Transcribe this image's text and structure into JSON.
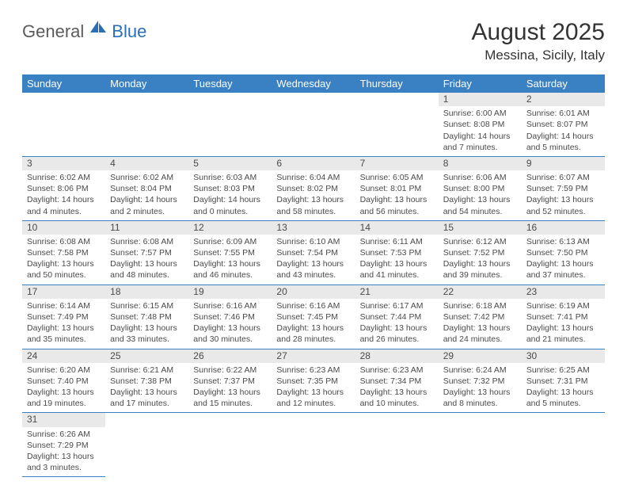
{
  "logo": {
    "word1": "General",
    "word2": "Blue"
  },
  "title": "August 2025",
  "location": "Messina, Sicily, Italy",
  "colors": {
    "header_bg": "#3a81c4",
    "header_text": "#ffffff",
    "daynum_bg": "#e9e9e9",
    "text": "#4a4a4a",
    "rule": "#3a81c4",
    "logo_gray": "#5b5b5b",
    "logo_blue": "#2a6fb5"
  },
  "weekdays": [
    "Sunday",
    "Monday",
    "Tuesday",
    "Wednesday",
    "Thursday",
    "Friday",
    "Saturday"
  ],
  "weeks": [
    [
      null,
      null,
      null,
      null,
      null,
      {
        "n": "1",
        "sunrise": "Sunrise: 6:00 AM",
        "sunset": "Sunset: 8:08 PM",
        "daylight": "Daylight: 14 hours and 7 minutes."
      },
      {
        "n": "2",
        "sunrise": "Sunrise: 6:01 AM",
        "sunset": "Sunset: 8:07 PM",
        "daylight": "Daylight: 14 hours and 5 minutes."
      }
    ],
    [
      {
        "n": "3",
        "sunrise": "Sunrise: 6:02 AM",
        "sunset": "Sunset: 8:06 PM",
        "daylight": "Daylight: 14 hours and 4 minutes."
      },
      {
        "n": "4",
        "sunrise": "Sunrise: 6:02 AM",
        "sunset": "Sunset: 8:04 PM",
        "daylight": "Daylight: 14 hours and 2 minutes."
      },
      {
        "n": "5",
        "sunrise": "Sunrise: 6:03 AM",
        "sunset": "Sunset: 8:03 PM",
        "daylight": "Daylight: 14 hours and 0 minutes."
      },
      {
        "n": "6",
        "sunrise": "Sunrise: 6:04 AM",
        "sunset": "Sunset: 8:02 PM",
        "daylight": "Daylight: 13 hours and 58 minutes."
      },
      {
        "n": "7",
        "sunrise": "Sunrise: 6:05 AM",
        "sunset": "Sunset: 8:01 PM",
        "daylight": "Daylight: 13 hours and 56 minutes."
      },
      {
        "n": "8",
        "sunrise": "Sunrise: 6:06 AM",
        "sunset": "Sunset: 8:00 PM",
        "daylight": "Daylight: 13 hours and 54 minutes."
      },
      {
        "n": "9",
        "sunrise": "Sunrise: 6:07 AM",
        "sunset": "Sunset: 7:59 PM",
        "daylight": "Daylight: 13 hours and 52 minutes."
      }
    ],
    [
      {
        "n": "10",
        "sunrise": "Sunrise: 6:08 AM",
        "sunset": "Sunset: 7:58 PM",
        "daylight": "Daylight: 13 hours and 50 minutes."
      },
      {
        "n": "11",
        "sunrise": "Sunrise: 6:08 AM",
        "sunset": "Sunset: 7:57 PM",
        "daylight": "Daylight: 13 hours and 48 minutes."
      },
      {
        "n": "12",
        "sunrise": "Sunrise: 6:09 AM",
        "sunset": "Sunset: 7:55 PM",
        "daylight": "Daylight: 13 hours and 46 minutes."
      },
      {
        "n": "13",
        "sunrise": "Sunrise: 6:10 AM",
        "sunset": "Sunset: 7:54 PM",
        "daylight": "Daylight: 13 hours and 43 minutes."
      },
      {
        "n": "14",
        "sunrise": "Sunrise: 6:11 AM",
        "sunset": "Sunset: 7:53 PM",
        "daylight": "Daylight: 13 hours and 41 minutes."
      },
      {
        "n": "15",
        "sunrise": "Sunrise: 6:12 AM",
        "sunset": "Sunset: 7:52 PM",
        "daylight": "Daylight: 13 hours and 39 minutes."
      },
      {
        "n": "16",
        "sunrise": "Sunrise: 6:13 AM",
        "sunset": "Sunset: 7:50 PM",
        "daylight": "Daylight: 13 hours and 37 minutes."
      }
    ],
    [
      {
        "n": "17",
        "sunrise": "Sunrise: 6:14 AM",
        "sunset": "Sunset: 7:49 PM",
        "daylight": "Daylight: 13 hours and 35 minutes."
      },
      {
        "n": "18",
        "sunrise": "Sunrise: 6:15 AM",
        "sunset": "Sunset: 7:48 PM",
        "daylight": "Daylight: 13 hours and 33 minutes."
      },
      {
        "n": "19",
        "sunrise": "Sunrise: 6:16 AM",
        "sunset": "Sunset: 7:46 PM",
        "daylight": "Daylight: 13 hours and 30 minutes."
      },
      {
        "n": "20",
        "sunrise": "Sunrise: 6:16 AM",
        "sunset": "Sunset: 7:45 PM",
        "daylight": "Daylight: 13 hours and 28 minutes."
      },
      {
        "n": "21",
        "sunrise": "Sunrise: 6:17 AM",
        "sunset": "Sunset: 7:44 PM",
        "daylight": "Daylight: 13 hours and 26 minutes."
      },
      {
        "n": "22",
        "sunrise": "Sunrise: 6:18 AM",
        "sunset": "Sunset: 7:42 PM",
        "daylight": "Daylight: 13 hours and 24 minutes."
      },
      {
        "n": "23",
        "sunrise": "Sunrise: 6:19 AM",
        "sunset": "Sunset: 7:41 PM",
        "daylight": "Daylight: 13 hours and 21 minutes."
      }
    ],
    [
      {
        "n": "24",
        "sunrise": "Sunrise: 6:20 AM",
        "sunset": "Sunset: 7:40 PM",
        "daylight": "Daylight: 13 hours and 19 minutes."
      },
      {
        "n": "25",
        "sunrise": "Sunrise: 6:21 AM",
        "sunset": "Sunset: 7:38 PM",
        "daylight": "Daylight: 13 hours and 17 minutes."
      },
      {
        "n": "26",
        "sunrise": "Sunrise: 6:22 AM",
        "sunset": "Sunset: 7:37 PM",
        "daylight": "Daylight: 13 hours and 15 minutes."
      },
      {
        "n": "27",
        "sunrise": "Sunrise: 6:23 AM",
        "sunset": "Sunset: 7:35 PM",
        "daylight": "Daylight: 13 hours and 12 minutes."
      },
      {
        "n": "28",
        "sunrise": "Sunrise: 6:23 AM",
        "sunset": "Sunset: 7:34 PM",
        "daylight": "Daylight: 13 hours and 10 minutes."
      },
      {
        "n": "29",
        "sunrise": "Sunrise: 6:24 AM",
        "sunset": "Sunset: 7:32 PM",
        "daylight": "Daylight: 13 hours and 8 minutes."
      },
      {
        "n": "30",
        "sunrise": "Sunrise: 6:25 AM",
        "sunset": "Sunset: 7:31 PM",
        "daylight": "Daylight: 13 hours and 5 minutes."
      }
    ],
    [
      {
        "n": "31",
        "sunrise": "Sunrise: 6:26 AM",
        "sunset": "Sunset: 7:29 PM",
        "daylight": "Daylight: 13 hours and 3 minutes."
      },
      null,
      null,
      null,
      null,
      null,
      null
    ]
  ]
}
